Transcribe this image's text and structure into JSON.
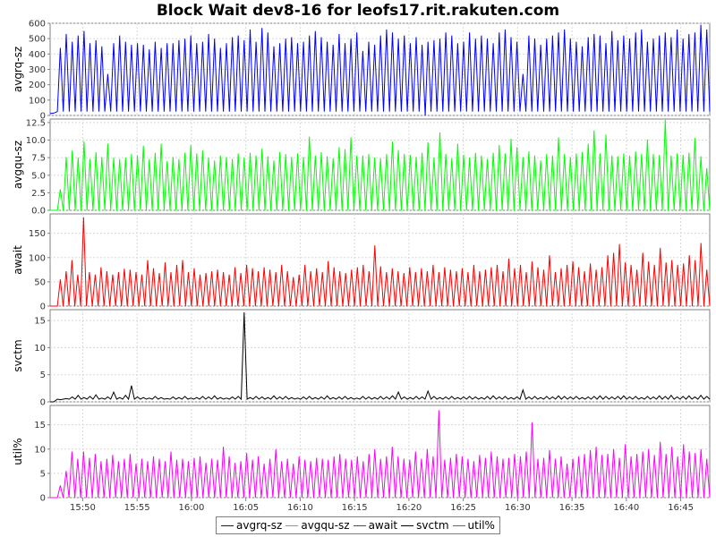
{
  "title": "Block Wait dev8-16 for leofs17.rit.rakuten.com",
  "chart_data": {
    "type": "line",
    "title": "Block Wait dev8-16 for leofs17.rit.rakuten.com",
    "x_tick_labels": [
      "15:50",
      "15:55",
      "16:00",
      "16:05",
      "16:10",
      "16:15",
      "16:20",
      "16:25",
      "16:30",
      "16:35",
      "16:40",
      "16:45"
    ],
    "x_range": [
      "15:47:00",
      "16:47:40"
    ],
    "grid": true,
    "legend_position": "bottom",
    "shared_x": true,
    "panels": [
      {
        "name": "avgrq-sz",
        "ylabel": "avgrq-sz",
        "color": "#0000ff",
        "ylim": [
          0,
          600
        ],
        "yticks": [
          0,
          100,
          200,
          300,
          400,
          500,
          600
        ],
        "decimals": 0,
        "baseline": 25,
        "peaks": [
          440,
          530,
          480,
          520,
          550,
          470,
          490,
          450,
          270,
          470,
          520,
          480,
          460,
          470,
          460,
          430,
          480,
          440,
          470,
          470,
          490,
          500,
          520,
          470,
          480,
          530,
          500,
          440,
          470,
          510,
          520,
          490,
          560,
          480,
          570,
          540,
          450,
          470,
          500,
          510,
          470,
          480,
          520,
          550,
          510,
          480,
          460,
          530,
          470,
          500,
          540,
          420,
          480,
          460,
          520,
          560,
          540,
          500,
          520,
          470,
          510,
          460,
          480,
          490,
          500,
          540,
          520,
          470,
          480,
          540,
          500,
          520,
          500,
          470,
          540,
          560,
          510,
          480,
          270,
          520,
          500,
          460,
          500,
          520,
          540,
          560,
          500,
          480,
          450,
          510,
          530,
          520,
          470,
          550,
          490,
          520,
          500,
          540,
          560,
          480,
          500,
          520,
          540,
          510,
          560,
          500,
          530,
          540,
          590,
          560
        ],
        "events": [
          {
            "time": "16:21:30",
            "value": 0
          }
        ]
      },
      {
        "name": "avgqu-sz",
        "ylabel": "avgqu-sz",
        "color": "#00ff00",
        "ylim": [
          0,
          13
        ],
        "yticks": [
          0,
          2.5,
          5,
          7.5,
          10,
          12.5
        ],
        "decimals": 1,
        "baseline": 0,
        "peaks": [
          3,
          7.6,
          8.5,
          7.5,
          9.8,
          7.3,
          8.3,
          7.6,
          9.5,
          7.5,
          7.3,
          7.5,
          8.0,
          7.8,
          9.2,
          7.3,
          8.2,
          9.5,
          7.0,
          7.6,
          7.3,
          8.2,
          9.3,
          8.1,
          8.5,
          7.5,
          7.1,
          7.8,
          7.6,
          7.3,
          8.1,
          7.5,
          8.2,
          7.8,
          8.8,
          7.7,
          7.1,
          8.3,
          8.0,
          7.6,
          8.1,
          7.6,
          10.5,
          7.8,
          8.3,
          7.7,
          7.4,
          9.0,
          8.7,
          10.4,
          7.8,
          7.8,
          8.0,
          7.5,
          7.4,
          8.0,
          9.8,
          8.6,
          8.0,
          7.9,
          7.6,
          8.2,
          9.7,
          7.5,
          11.1,
          8.0,
          7.4,
          9.5,
          7.9,
          7.5,
          8.2,
          7.8,
          7.3,
          8.2,
          9.3,
          8.1,
          10.2,
          9.0,
          7.6,
          8.4,
          7.8,
          7.1,
          8.0,
          7.8,
          10.4,
          8.0,
          7.6,
          8.1,
          8.3,
          9.5,
          11.4,
          8.1,
          10.8,
          7.8,
          7.7,
          8.1,
          7.8,
          8.4,
          8.0,
          10.1,
          8.0,
          7.9,
          12.9,
          7.8,
          8.1,
          7.9,
          8.2,
          10.3,
          7.7,
          6.0
        ]
      },
      {
        "name": "await",
        "ylabel": "await",
        "color": "#ff0000",
        "ylim": [
          0,
          190
        ],
        "yticks": [
          0,
          50,
          100,
          150
        ],
        "decimals": 0,
        "baseline": 0,
        "peaks": [
          55,
          72,
          95,
          65,
          183,
          70,
          65,
          80,
          72,
          65,
          70,
          77,
          75,
          70,
          65,
          95,
          78,
          68,
          90,
          70,
          85,
          95,
          70,
          78,
          65,
          68,
          72,
          75,
          70,
          65,
          80,
          68,
          85,
          78,
          72,
          80,
          75,
          70,
          85,
          72,
          60,
          65,
          85,
          72,
          78,
          70,
          93,
          80,
          72,
          68,
          75,
          80,
          85,
          72,
          125,
          82,
          70,
          78,
          72,
          68,
          80,
          70,
          78,
          72,
          85,
          70,
          80,
          75,
          72,
          78,
          70,
          85,
          72,
          75,
          80,
          85,
          72,
          98,
          78,
          85,
          70,
          92,
          80,
          75,
          105,
          70,
          78,
          85,
          92,
          80,
          72,
          88,
          75,
          80,
          105,
          110,
          128,
          90,
          85,
          75,
          110,
          92,
          85,
          120,
          90,
          95,
          85,
          88,
          105,
          95,
          130,
          75
        ]
      },
      {
        "name": "svctm",
        "ylabel": "svctm",
        "color": "#000000",
        "ylim": [
          0,
          17
        ],
        "yticks": [
          0,
          5,
          10,
          15
        ],
        "decimals": 0,
        "baseline": 0.5,
        "peaks": [
          0.4,
          0.6,
          0.9,
          1.2,
          0.8,
          1.0,
          1.3,
          0.7,
          0.9,
          1.8,
          0.8,
          1.2,
          3.0,
          0.9,
          0.8,
          0.7,
          1.0,
          0.8,
          0.6,
          0.9,
          0.8,
          1.0,
          0.7,
          0.8,
          1.0,
          0.9,
          1.1,
          0.8,
          0.7,
          0.9,
          1.0,
          16.5,
          0.8,
          1.0,
          0.9,
          0.8,
          1.1,
          0.9,
          1.0,
          0.8,
          0.7,
          0.9,
          1.0,
          0.8,
          0.9,
          1.1,
          0.8,
          0.9,
          1.0,
          0.8,
          0.7,
          1.0,
          0.9,
          0.8,
          1.0,
          0.9,
          1.1,
          1.8,
          0.9,
          0.8,
          1.0,
          0.9,
          2.0,
          1.0,
          0.8,
          0.9,
          1.0,
          0.8,
          0.9,
          1.0,
          0.9,
          0.8,
          1.0,
          1.1,
          0.9,
          1.0,
          0.8,
          0.9,
          2.2,
          0.9,
          1.0,
          0.8,
          1.0,
          0.9,
          1.1,
          1.0,
          0.9,
          1.0,
          0.8,
          0.9,
          1.0,
          1.1,
          1.0,
          0.9,
          1.0,
          1.1,
          0.9,
          1.0,
          0.8,
          1.0,
          0.9,
          1.1,
          1.0,
          1.2,
          0.9,
          1.0,
          1.1,
          0.9,
          1.2,
          1.0
        ]
      },
      {
        "name": "util%",
        "ylabel": "util%",
        "color": "#ff00ff",
        "ylim": [
          0,
          19
        ],
        "yticks": [
          0,
          5,
          10,
          15
        ],
        "decimals": 0,
        "baseline": 0,
        "peaks": [
          2.5,
          5.5,
          9.5,
          8.0,
          9.5,
          8.2,
          9.0,
          7.5,
          8.0,
          8.8,
          7.5,
          8.0,
          9.0,
          7.0,
          8.0,
          7.5,
          8.5,
          8.0,
          7.5,
          9.5,
          7.8,
          8.0,
          7.5,
          8.2,
          8.5,
          7.2,
          8.0,
          7.8,
          10.5,
          8.5,
          7.2,
          7.5,
          9.2,
          7.8,
          8.5,
          7.0,
          8.0,
          10.0,
          7.5,
          8.0,
          7.0,
          8.5,
          7.8,
          7.5,
          8.2,
          8.0,
          7.8,
          8.5,
          9.0,
          8.0,
          7.8,
          8.5,
          7.5,
          9.0,
          10.0,
          8.0,
          8.5,
          10.5,
          8.5,
          8.0,
          7.8,
          9.5,
          8.0,
          10.0,
          8.5,
          18.0,
          7.8,
          8.2,
          9.0,
          8.5,
          8.0,
          7.5,
          8.8,
          8.2,
          9.5,
          8.5,
          8.0,
          8.2,
          9.0,
          8.5,
          9.5,
          15.5,
          8.0,
          8.2,
          9.8,
          8.0,
          8.5,
          7.0,
          8.0,
          8.5,
          9.0,
          9.8,
          10.5,
          8.8,
          9.0,
          10.0,
          8.2,
          11.0,
          8.5,
          9.0,
          9.5,
          10.0,
          8.8,
          11.5,
          9.0,
          10.5,
          8.5,
          11.0,
          9.5,
          9.2,
          10.0,
          8.0
        ]
      }
    ]
  },
  "legend": [
    {
      "label": "avgrq-sz",
      "color": "#0000ff"
    },
    {
      "label": "avgqu-sz",
      "color": "#00ff00"
    },
    {
      "label": "await",
      "color": "#ff0000"
    },
    {
      "label": "svctm",
      "color": "#000000"
    },
    {
      "label": "util%",
      "color": "#ff00ff"
    }
  ]
}
